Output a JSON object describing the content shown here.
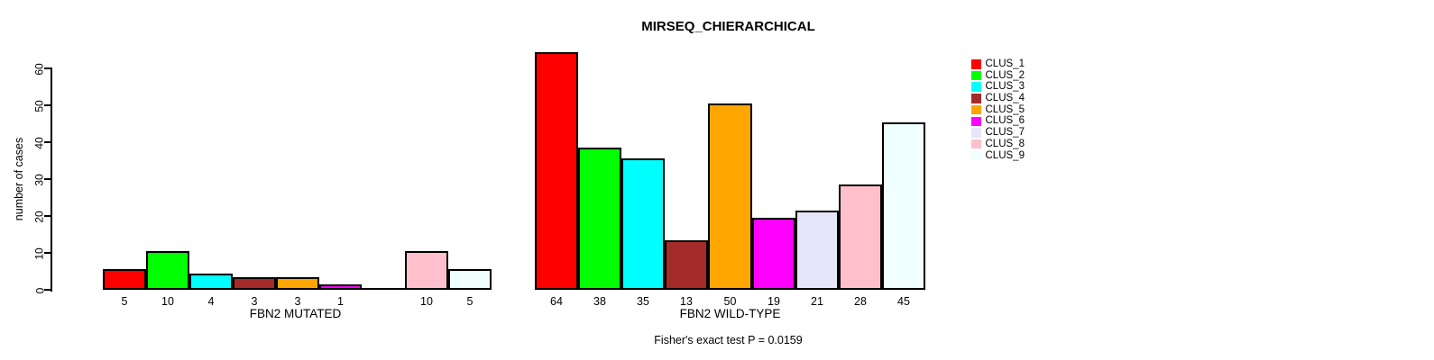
{
  "chart_data": {
    "type": "bar",
    "title": "MIRSEQ_CHIERARCHICAL",
    "ylabel": "number of cases",
    "annotation": "Fisher's exact test P = 0.0159",
    "ylim": [
      0,
      60
    ],
    "yticks": [
      0,
      10,
      20,
      30,
      40,
      50,
      60
    ],
    "grid": false,
    "legend_position": "right",
    "clusters": [
      {
        "name": "CLUS_1",
        "color": "#FF0000"
      },
      {
        "name": "CLUS_2",
        "color": "#00FF00"
      },
      {
        "name": "CLUS_3",
        "color": "#00FFFF"
      },
      {
        "name": "CLUS_4",
        "color": "#A52A2A"
      },
      {
        "name": "CLUS_5",
        "color": "#FFA500"
      },
      {
        "name": "CLUS_6",
        "color": "#FF00FF"
      },
      {
        "name": "CLUS_7",
        "color": "#E6E6FA"
      },
      {
        "name": "CLUS_8",
        "color": "#FFC0CB"
      },
      {
        "name": "CLUS_9",
        "color": "#F0FFFF"
      }
    ],
    "groups": [
      {
        "label": "FBN2 MUTATED",
        "values": [
          5,
          10,
          4,
          3,
          3,
          1,
          0,
          10,
          5
        ],
        "bar_labels": [
          "5",
          "10",
          "4",
          "3",
          "3",
          "1",
          "",
          "10",
          "5"
        ]
      },
      {
        "label": "FBN2 WILD-TYPE",
        "values": [
          64,
          38,
          35,
          13,
          50,
          19,
          21,
          28,
          45
        ],
        "bar_labels": [
          "64",
          "38",
          "35",
          "13",
          "50",
          "19",
          "21",
          "28",
          "45"
        ]
      }
    ]
  }
}
